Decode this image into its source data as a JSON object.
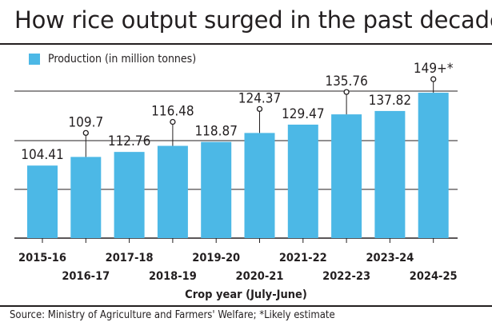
{
  "title": "How rice output surged in the past decade",
  "legend_label": "Production (in million tonnes)",
  "source": "Source: Ministry of Agriculture and Farmers' Welfare;   *Likely estimate",
  "colors": {
    "bar": "#4cb8e6",
    "grid": "#231f20",
    "text": "#231f20"
  },
  "chart_data": {
    "type": "bar",
    "title": "How rice output surged in the past decade",
    "xlabel": "Crop year (July-June)",
    "ylabel": "",
    "categories": [
      "2015-16",
      "2016-17",
      "2017-18",
      "2018-19",
      "2019-20",
      "2020-21",
      "2021-22",
      "2022-23",
      "2023-24",
      "2024-25"
    ],
    "series": [
      {
        "name": "Production (in million tonnes)",
        "values": [
          104.41,
          109.7,
          112.76,
          116.48,
          118.87,
          124.37,
          129.47,
          135.76,
          137.82,
          149
        ]
      }
    ],
    "data_labels": [
      "104.41",
      "109.7",
      "112.76",
      "116.48",
      "118.87",
      "124.37",
      "129.47",
      "135.76",
      "137.82",
      "149+*"
    ],
    "callout_categories": [
      "2016-17",
      "2018-19",
      "2020-21",
      "2022-23",
      "2024-25"
    ],
    "ylim": [
      0,
      150
    ],
    "grid": true,
    "legend_position": "top-left"
  }
}
